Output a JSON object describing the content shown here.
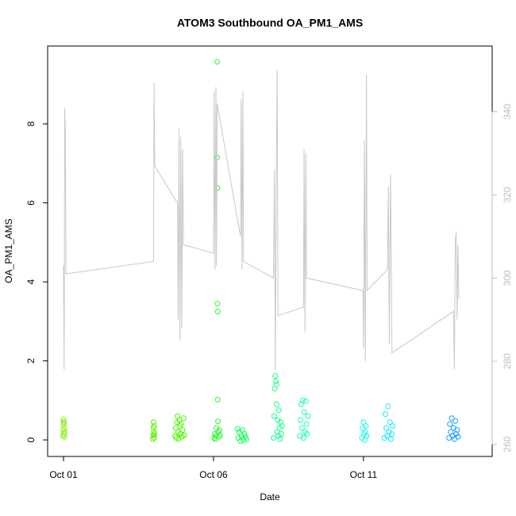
{
  "chart_data": {
    "type": "scatter",
    "title": "ATOM3 Southbound OA_PM1_AMS",
    "x_label": "Date",
    "y_label": "OA_PM1_AMS",
    "xlim": [
      0.47,
      15.29
    ],
    "xticks": [
      {
        "value": 1,
        "label": "Oct 01"
      },
      {
        "value": 6,
        "label": "Oct 06"
      },
      {
        "value": 11,
        "label": "Oct 11"
      }
    ],
    "ylim": [
      -0.42,
      9.97
    ],
    "yticks": [
      0,
      2,
      4,
      6,
      8
    ],
    "y2lim": [
      257.1,
      355.8
    ],
    "y2ticks": [
      260,
      280,
      300,
      320,
      340
    ],
    "y2color": "#bebebe",
    "series": [
      {
        "color": "#8fef1f",
        "x": [
          0.98,
          0.99,
          1.0,
          1.0,
          1.01,
          1.02,
          1.03,
          1.03,
          1.04,
          1.0
        ],
        "values": [
          0.1,
          0.25,
          0.52,
          0.38,
          0.15,
          0.44,
          0.3,
          0.08,
          0.2,
          0.46
        ]
      },
      {
        "color": "#5ef000",
        "x": [
          3.98,
          3.99,
          4.0,
          4.0,
          4.01,
          4.02,
          4.02,
          4.03
        ],
        "values": [
          0.02,
          0.12,
          0.45,
          0.3,
          0.2,
          0.06,
          0.35,
          0.15
        ]
      },
      {
        "color": "#4df500",
        "x": [
          4.72,
          4.74,
          4.76,
          4.78,
          4.8,
          4.82,
          4.84,
          4.86,
          4.88,
          4.9,
          4.92,
          4.95,
          4.97,
          5.0,
          5.02
        ],
        "values": [
          0.1,
          0.3,
          0.05,
          0.45,
          0.6,
          0.2,
          0.02,
          0.5,
          0.35,
          0.15,
          0.4,
          0.08,
          0.25,
          0.55,
          0.12
        ]
      },
      {
        "color": "#33f533",
        "x": [
          6.02,
          6.04,
          6.06,
          6.08,
          6.1,
          6.12,
          6.12,
          6.13,
          6.13,
          6.14,
          6.14,
          6.15,
          6.16,
          6.18,
          6.2,
          6.22
        ],
        "values": [
          0.05,
          0.15,
          0.02,
          0.1,
          0.3,
          9.57,
          7.15,
          6.38,
          3.45,
          3.25,
          1.02,
          0.47,
          0.2,
          0.08,
          0.25,
          0.12
        ]
      },
      {
        "color": "#1aff5a",
        "x": [
          6.8,
          6.83,
          6.86,
          6.9,
          6.93,
          6.96,
          7.0,
          7.03,
          7.06,
          7.1
        ],
        "values": [
          0.28,
          0.05,
          0.2,
          -0.03,
          0.1,
          0.25,
          0.0,
          0.15,
          0.08,
          0.02
        ]
      },
      {
        "color": "#1aff90",
        "x": [
          8.0,
          8.02,
          8.04,
          8.06,
          8.08,
          8.1,
          8.1,
          8.12,
          8.14,
          8.16,
          8.18,
          8.2,
          8.22,
          8.24,
          8.26,
          8.28
        ],
        "values": [
          0.05,
          0.6,
          1.3,
          1.62,
          1.48,
          1.4,
          0.9,
          0.2,
          0.5,
          0.1,
          0.75,
          0.3,
          0.02,
          0.45,
          0.15,
          0.35
        ]
      },
      {
        "color": "#1affb5",
        "x": [
          8.88,
          8.9,
          8.92,
          8.95,
          8.98,
          9.0,
          9.02,
          9.05,
          9.08,
          9.1,
          9.12,
          9.15
        ],
        "values": [
          0.1,
          0.5,
          0.9,
          0.3,
          1.0,
          0.05,
          0.7,
          0.2,
          0.98,
          0.4,
          0.15,
          0.6
        ]
      },
      {
        "color": "#1affe0",
        "x": [
          10.95,
          10.97,
          11.0,
          11.02,
          11.04,
          11.06,
          11.08,
          11.1
        ],
        "values": [
          0.05,
          0.3,
          0.45,
          0.15,
          0.0,
          0.2,
          0.35,
          0.1
        ]
      },
      {
        "color": "#1ae6ff",
        "x": [
          11.7,
          11.73,
          11.76,
          11.79,
          11.82,
          11.85,
          11.88,
          11.91,
          11.94,
          11.97
        ],
        "values": [
          0.05,
          0.65,
          0.3,
          0.1,
          0.85,
          0.2,
          0.45,
          0.02,
          0.15,
          0.35
        ]
      },
      {
        "color": "#1aa0ff",
        "x": [
          13.85,
          13.88,
          13.91,
          13.94,
          13.97,
          14.0,
          14.03,
          14.06,
          14.09,
          14.12,
          14.15
        ],
        "values": [
          0.05,
          0.4,
          0.2,
          0.55,
          0.1,
          0.3,
          0.02,
          0.48,
          0.15,
          0.25,
          0.08
        ]
      },
      {
        "type": "line",
        "axis": "y2",
        "color": "#c8c8c8",
        "x": [
          1.0,
          1.02,
          1.04,
          1.06,
          1.08,
          4.0,
          4.02,
          4.04,
          4.8,
          4.82,
          4.85,
          4.88,
          4.91,
          4.94,
          4.97,
          5.0,
          6.0,
          6.02,
          6.05,
          6.08,
          6.1,
          6.12,
          6.9,
          6.92,
          6.95,
          6.98,
          7.0,
          8.0,
          8.03,
          8.06,
          8.09,
          8.12,
          8.15,
          9.0,
          9.02,
          9.05,
          9.08,
          9.1,
          10.98,
          11.0,
          11.03,
          11.06,
          11.1,
          11.12,
          11.8,
          11.83,
          11.86,
          11.9,
          11.93,
          11.95,
          14.0,
          14.03,
          14.06,
          14.09,
          14.12,
          14.15,
          14.18
        ],
        "values": [
          303,
          278,
          341,
          336,
          301,
          304,
          347,
          327,
          318,
          290,
          336,
          285,
          334,
          288,
          331,
          308,
          306,
          345,
          302,
          346,
          303,
          342,
          310,
          343,
          302,
          345,
          304,
          300,
          326,
          278,
          322,
          350,
          291,
          293,
          331,
          287,
          330,
          300,
          297,
          283,
          333,
          280,
          349,
          297,
          302,
          322,
          284,
          325,
          300,
          282,
          292,
          278,
          309,
          311,
          290,
          308,
          295
        ]
      }
    ]
  }
}
